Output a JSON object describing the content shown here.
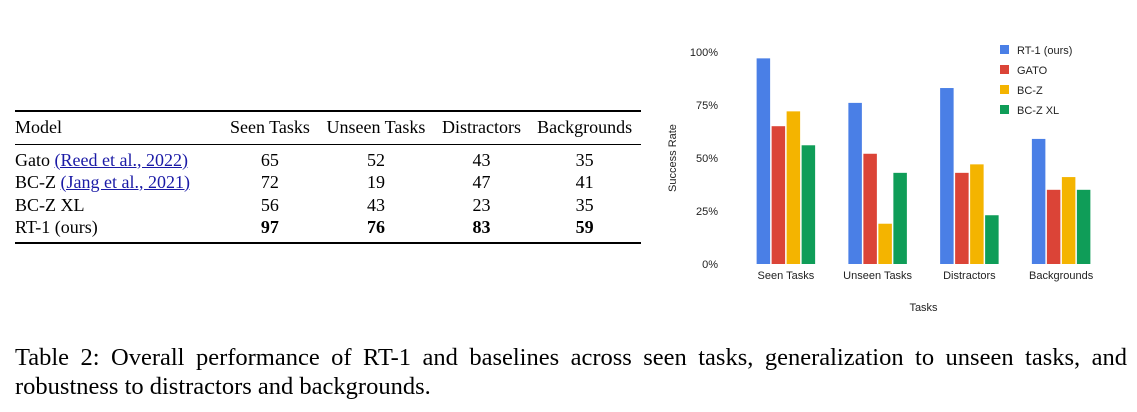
{
  "table": {
    "headers": [
      "Model",
      "Seen Tasks",
      "Unseen Tasks",
      "Distractors",
      "Backgrounds"
    ],
    "rows": [
      {
        "model": "Gato",
        "citation": "(Reed et al., 2022)",
        "values": [
          "65",
          "52",
          "43",
          "35"
        ],
        "bold": false
      },
      {
        "model": "BC-Z",
        "citation": "(Jang et al., 2021)",
        "values": [
          "72",
          "19",
          "47",
          "41"
        ],
        "bold": false
      },
      {
        "model": "BC-Z XL",
        "citation": "",
        "values": [
          "56",
          "43",
          "23",
          "35"
        ],
        "bold": false
      },
      {
        "model": "RT-1 (ours)",
        "citation": "",
        "values": [
          "97",
          "76",
          "83",
          "59"
        ],
        "bold": true
      }
    ]
  },
  "chart_data": {
    "type": "bar",
    "categories": [
      "Seen Tasks",
      "Unseen Tasks",
      "Distractors",
      "Backgrounds"
    ],
    "series": [
      {
        "name": "RT-1 (ours)",
        "color": "#4a7fe6",
        "values": [
          97,
          76,
          83,
          59
        ]
      },
      {
        "name": "GATO",
        "color": "#db4437",
        "values": [
          65,
          52,
          43,
          35
        ]
      },
      {
        "name": "BC-Z",
        "color": "#f4b400",
        "values": [
          72,
          19,
          47,
          41
        ]
      },
      {
        "name": "BC-Z XL",
        "color": "#0f9d58",
        "values": [
          56,
          43,
          23,
          35
        ]
      }
    ],
    "xlabel": "Tasks",
    "ylabel": "Success Rate",
    "ylim": [
      0,
      100
    ],
    "yticks": [
      "0%",
      "25%",
      "50%",
      "75%",
      "100%"
    ],
    "legend_position": "top-right",
    "grid": false
  },
  "caption": "Table 2:  Overall performance of RT-1 and baselines across seen tasks, generalization to unseen tasks, and robustness to distractors and backgrounds."
}
